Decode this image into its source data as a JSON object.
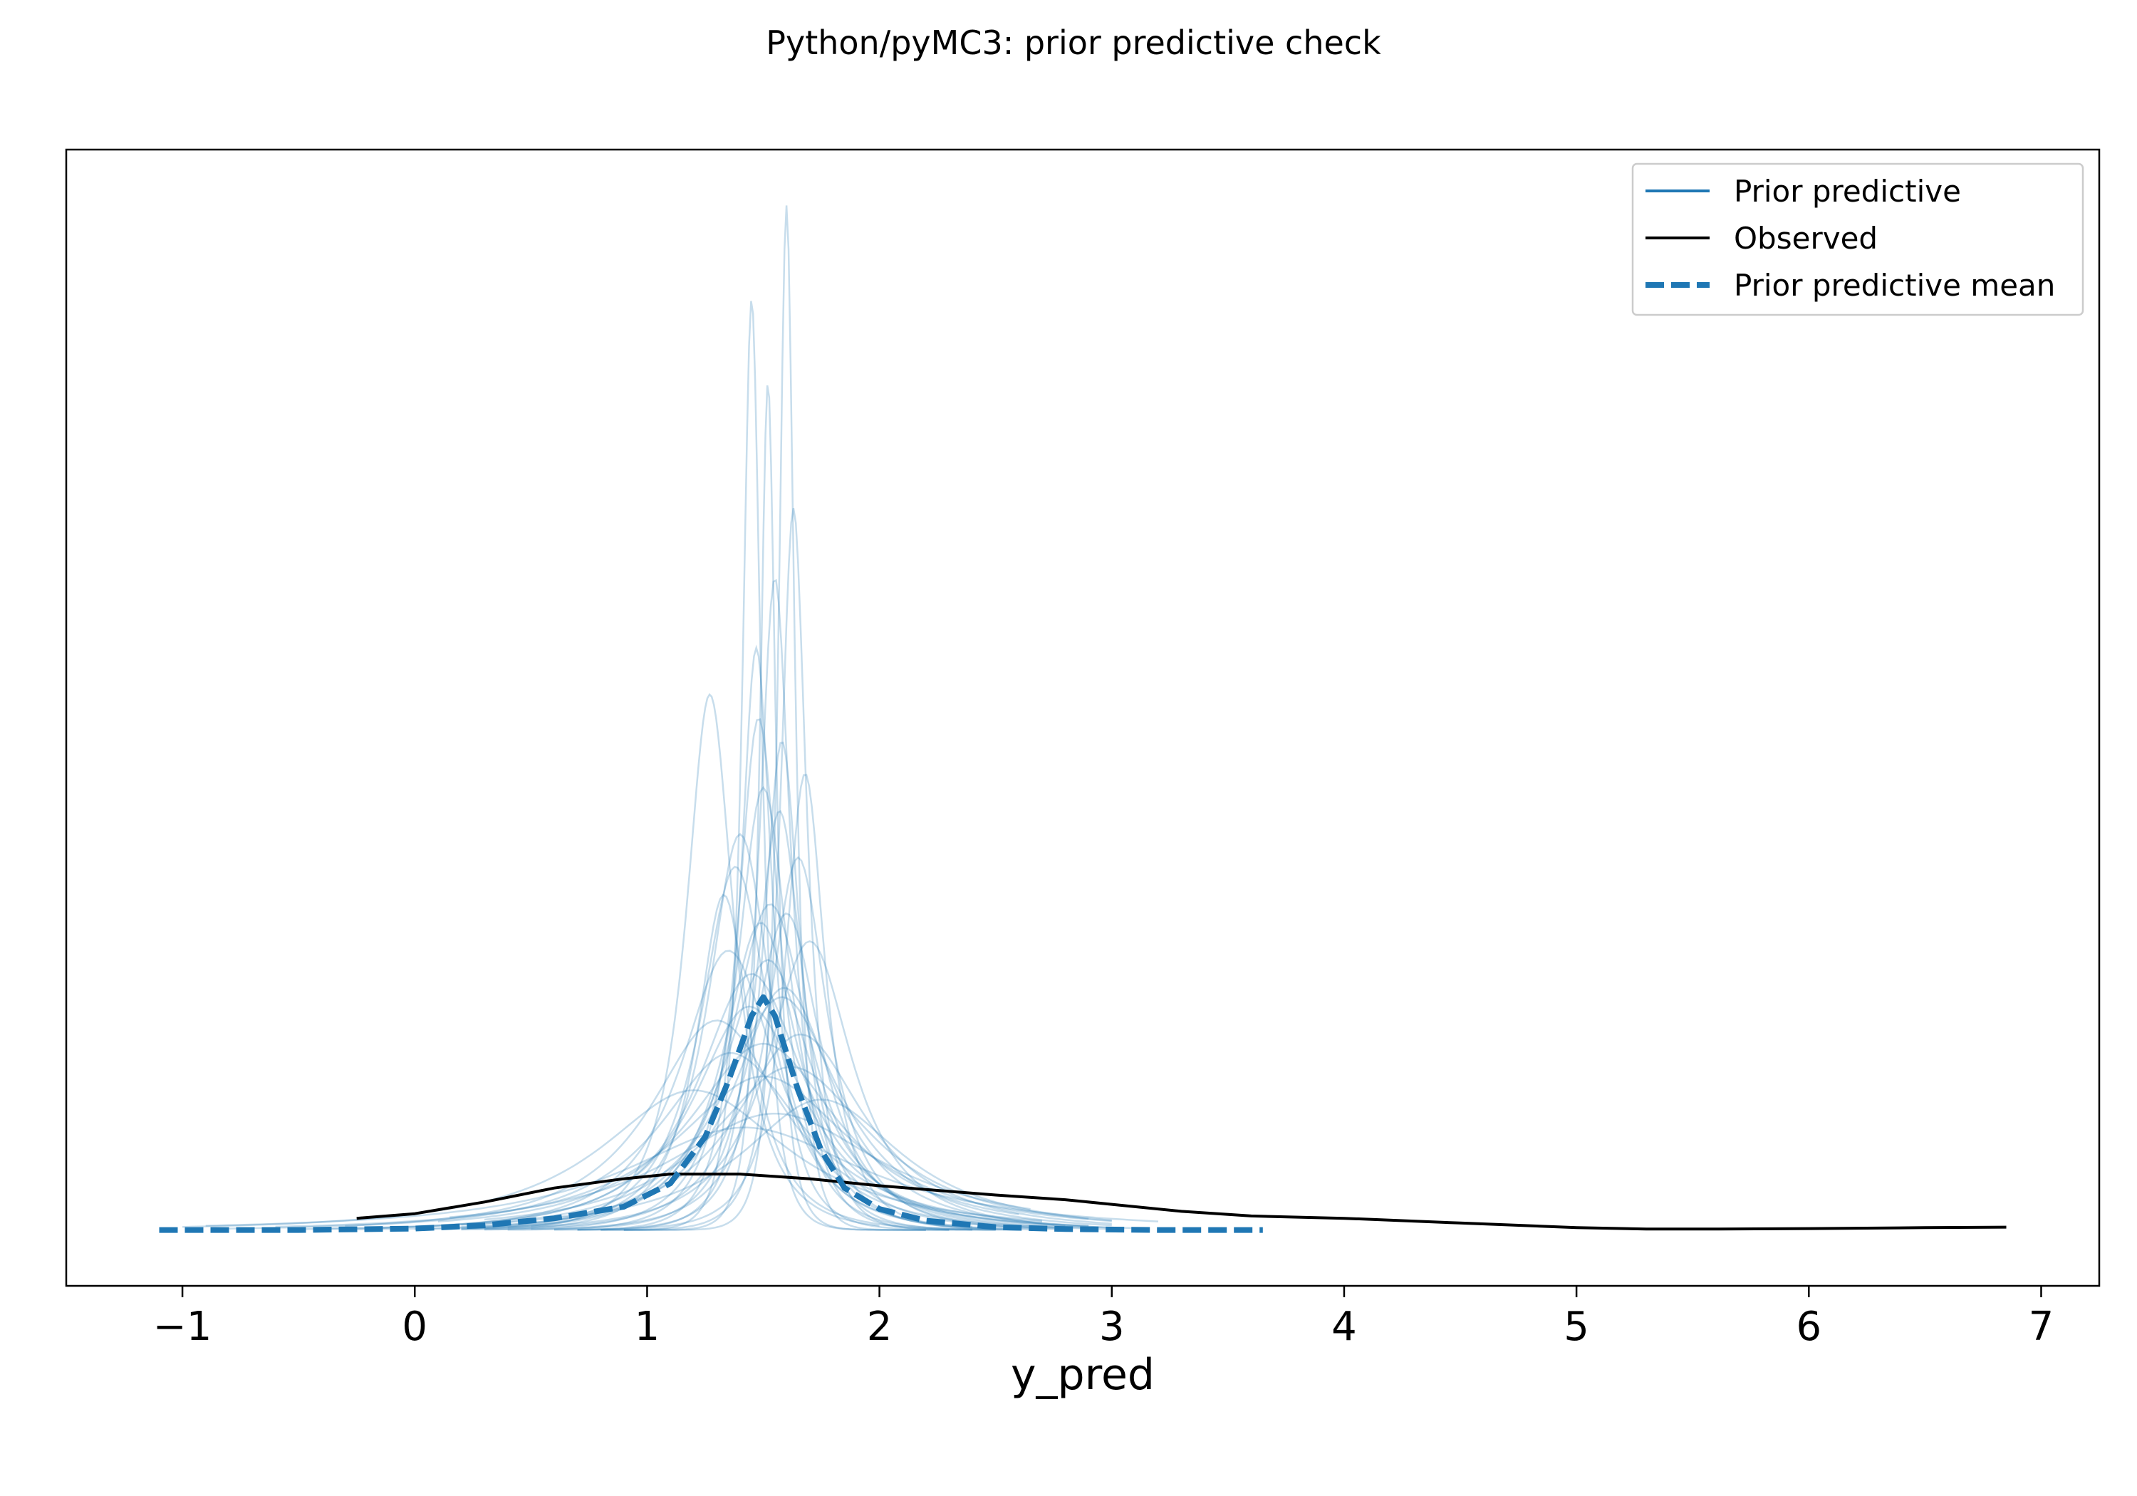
{
  "chart_data": {
    "type": "line",
    "title": "Python/pyMC3: prior predictive check",
    "xlabel": "y_pred",
    "ylabel": "",
    "xlim": [
      -1.5,
      7.25
    ],
    "ylim": [
      -0.12,
      2.32
    ],
    "x_ticks": [
      -1,
      0,
      1,
      2,
      3,
      4,
      5,
      6,
      7
    ],
    "x_tick_labels": [
      "−1",
      "0",
      "1",
      "2",
      "3",
      "4",
      "5",
      "6",
      "7"
    ],
    "y_ticks_visible": false,
    "grid": false,
    "legend": {
      "position": "top-right",
      "entries": [
        {
          "label": "Prior predictive",
          "style": "solid",
          "color": "#1f77b4"
        },
        {
          "label": "Observed",
          "style": "solid",
          "color": "#000000"
        },
        {
          "label": "Prior predictive mean",
          "style": "dashed",
          "color": "#1f77b4"
        }
      ]
    },
    "colors": {
      "prior": "#1f77b4",
      "observed": "#000000",
      "mean": "#1f77b4"
    },
    "series": [
      {
        "name": "Observed",
        "x": [
          -0.25,
          0.0,
          0.3,
          0.6,
          0.9,
          1.1,
          1.4,
          1.7,
          2.0,
          2.5,
          2.8,
          3.0,
          3.3,
          3.6,
          4.0,
          4.5,
          5.0,
          5.3,
          5.6,
          6.0,
          6.5,
          6.85
        ],
        "y": [
          0.025,
          0.035,
          0.06,
          0.09,
          0.11,
          0.12,
          0.12,
          0.11,
          0.095,
          0.075,
          0.065,
          0.055,
          0.04,
          0.03,
          0.025,
          0.015,
          0.005,
          0.002,
          0.002,
          0.003,
          0.005,
          0.006
        ]
      },
      {
        "name": "Prior predictive mean",
        "x": [
          -1.1,
          -0.5,
          0.0,
          0.3,
          0.6,
          0.9,
          1.1,
          1.25,
          1.35,
          1.45,
          1.5,
          1.55,
          1.65,
          1.75,
          1.85,
          2.0,
          2.2,
          2.5,
          2.8,
          3.2,
          3.65
        ],
        "y": [
          0.0,
          0.0,
          0.003,
          0.01,
          0.025,
          0.05,
          0.1,
          0.2,
          0.32,
          0.46,
          0.5,
          0.46,
          0.3,
          0.17,
          0.09,
          0.045,
          0.02,
          0.006,
          0.002,
          0.0,
          0.0
        ]
      }
    ],
    "prior_predictive_samples": [
      {
        "mu": 1.6,
        "sigma": 0.03,
        "peak": 2.2,
        "min": 0.9,
        "max": 2.3
      },
      {
        "mu": 1.45,
        "sigma": 0.035,
        "peak": 2.0,
        "min": 0.8,
        "max": 2.2
      },
      {
        "mu": 1.52,
        "sigma": 0.03,
        "peak": 1.82,
        "min": 0.9,
        "max": 2.2
      },
      {
        "mu": 1.63,
        "sigma": 0.05,
        "peak": 1.55,
        "min": 0.8,
        "max": 2.4
      },
      {
        "mu": 1.27,
        "sigma": 0.09,
        "peak": 1.15,
        "min": 0.5,
        "max": 2.0
      },
      {
        "mu": 1.55,
        "sigma": 0.06,
        "peak": 1.4,
        "min": 0.7,
        "max": 2.5
      },
      {
        "mu": 1.48,
        "sigma": 0.08,
        "peak": 1.1,
        "min": 0.4,
        "max": 2.6
      },
      {
        "mu": 1.58,
        "sigma": 0.07,
        "peak": 1.05,
        "min": 0.6,
        "max": 2.5
      },
      {
        "mu": 1.5,
        "sigma": 0.1,
        "peak": 0.95,
        "min": 0.3,
        "max": 2.7
      },
      {
        "mu": 1.4,
        "sigma": 0.12,
        "peak": 0.85,
        "min": 0.2,
        "max": 2.6
      },
      {
        "mu": 1.65,
        "sigma": 0.11,
        "peak": 0.8,
        "min": 0.5,
        "max": 2.8
      },
      {
        "mu": 1.53,
        "sigma": 0.15,
        "peak": 0.7,
        "min": 0.0,
        "max": 3.0
      },
      {
        "mu": 1.35,
        "sigma": 0.18,
        "peak": 0.6,
        "min": -0.2,
        "max": 2.8
      },
      {
        "mu": 1.7,
        "sigma": 0.16,
        "peak": 0.62,
        "min": 0.4,
        "max": 3.0
      },
      {
        "mu": 1.45,
        "sigma": 0.2,
        "peak": 0.55,
        "min": -0.5,
        "max": 3.1
      },
      {
        "mu": 1.58,
        "sigma": 0.22,
        "peak": 0.5,
        "min": 0.2,
        "max": 3.0
      },
      {
        "mu": 1.3,
        "sigma": 0.25,
        "peak": 0.45,
        "min": -0.8,
        "max": 2.9
      },
      {
        "mu": 1.5,
        "sigma": 0.28,
        "peak": 0.4,
        "min": 0.1,
        "max": 2.6
      },
      {
        "mu": 1.62,
        "sigma": 0.3,
        "peak": 0.35,
        "min": 0.3,
        "max": 2.9
      },
      {
        "mu": 1.2,
        "sigma": 0.35,
        "peak": 0.3,
        "min": -1.0,
        "max": 2.7
      },
      {
        "mu": 1.55,
        "sigma": 0.4,
        "peak": 0.25,
        "min": 0.15,
        "max": 2.65
      },
      {
        "mu": 1.42,
        "sigma": 0.45,
        "peak": 0.22,
        "min": -0.9,
        "max": 3.2
      },
      {
        "mu": 1.75,
        "sigma": 0.3,
        "peak": 0.28,
        "min": 0.6,
        "max": 3.0
      },
      {
        "mu": 1.38,
        "sigma": 0.13,
        "peak": 0.78,
        "min": 0.3,
        "max": 2.4
      },
      {
        "mu": 1.57,
        "sigma": 0.09,
        "peak": 0.9,
        "min": 0.6,
        "max": 2.5
      },
      {
        "mu": 1.47,
        "sigma": 0.06,
        "peak": 1.25,
        "min": 0.7,
        "max": 2.3
      },
      {
        "mu": 1.68,
        "sigma": 0.075,
        "peak": 0.98,
        "min": 0.7,
        "max": 2.6
      },
      {
        "mu": 1.33,
        "sigma": 0.1,
        "peak": 0.72,
        "min": 0.2,
        "max": 2.4
      },
      {
        "mu": 1.6,
        "sigma": 0.13,
        "peak": 0.68,
        "min": 0.3,
        "max": 2.8
      },
      {
        "mu": 1.52,
        "sigma": 0.17,
        "peak": 0.58,
        "min": -0.3,
        "max": 2.9
      },
      {
        "mu": 1.44,
        "sigma": 0.21,
        "peak": 0.48,
        "min": -0.4,
        "max": 2.8
      },
      {
        "mu": 1.66,
        "sigma": 0.24,
        "peak": 0.42,
        "min": 0.3,
        "max": 3.0
      },
      {
        "mu": 1.5,
        "sigma": 0.33,
        "peak": 0.33,
        "min": -0.6,
        "max": 3.0
      },
      {
        "mu": 1.36,
        "sigma": 0.27,
        "peak": 0.38,
        "min": -0.3,
        "max": 2.7
      },
      {
        "mu": 1.59,
        "sigma": 0.19,
        "peak": 0.52,
        "min": 0.2,
        "max": 2.9
      },
      {
        "mu": 1.49,
        "sigma": 0.14,
        "peak": 0.66,
        "min": 0.2,
        "max": 2.7
      }
    ]
  }
}
